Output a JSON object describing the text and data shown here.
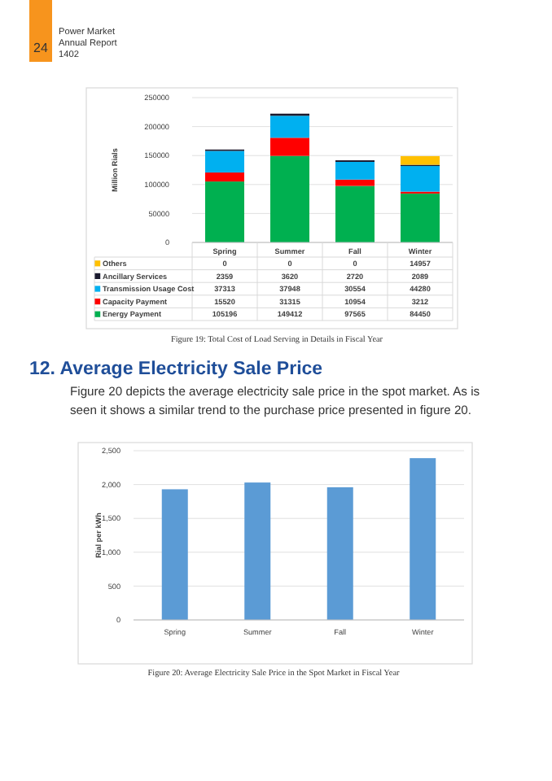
{
  "chart_data": [
    {
      "type": "bar",
      "stacked": true,
      "ylabel": "Million Rials",
      "categories": [
        "Spring",
        "Summer",
        "Fall",
        "Winter"
      ],
      "series": [
        {
          "name": "Energy Payment",
          "color": "#00b050",
          "values": [
            105196,
            149412,
            97565,
            84450
          ]
        },
        {
          "name": "Capacity Payment",
          "color": "#ff0000",
          "values": [
            15520,
            31315,
            10954,
            3212
          ]
        },
        {
          "name": "Transmission Usage Cost",
          "color": "#00b0f0",
          "values": [
            37313,
            37948,
            30554,
            44280
          ]
        },
        {
          "name": "Ancillary Services",
          "color": "#1a1a2e",
          "values": [
            2359,
            3620,
            2720,
            2089
          ]
        },
        {
          "name": "Others",
          "color": "#ffc000",
          "values": [
            0,
            0,
            0,
            14957
          ]
        }
      ],
      "ylim": [
        0,
        250000
      ],
      "yticks": [
        0,
        50000,
        100000,
        150000,
        200000,
        250000
      ],
      "grid": "y",
      "data_labels": true,
      "legend": "bottom",
      "annotations": [
        "24",
        "Power Market",
        "Annual Report",
        "1402",
        "Figure 19: Total Cost of Load Serving in Details in Fiscal Year"
      ]
    },
    {
      "type": "bar",
      "title": "12. Average Electricity Sale Price",
      "subtitle": "Figure 20 depicts the average electricity sale price in the spot market. As is seen it shows a similar trend to the purchase price presented in figure 20.",
      "ylabel": "Rial per kWh",
      "categories": [
        "Spring",
        "Summer",
        "Fall",
        "Winter"
      ],
      "series": [
        {
          "color": "#5b9bd5",
          "values": [
            1930,
            2030,
            1960,
            2390
          ]
        }
      ],
      "ylim": [
        0,
        2500
      ],
      "yticks": [
        0,
        500,
        {
          "value": 1000,
          "label": "1,000"
        },
        {
          "value": 1500,
          "label": "1,500"
        },
        {
          "value": 2000,
          "label": "2,000"
        },
        {
          "value": 2500,
          "label": "2,500"
        }
      ],
      "grid": "y",
      "annotations": [
        "Figure 20: Average Electricity Sale Price in the Spot Market in Fiscal Year"
      ]
    }
  ]
}
